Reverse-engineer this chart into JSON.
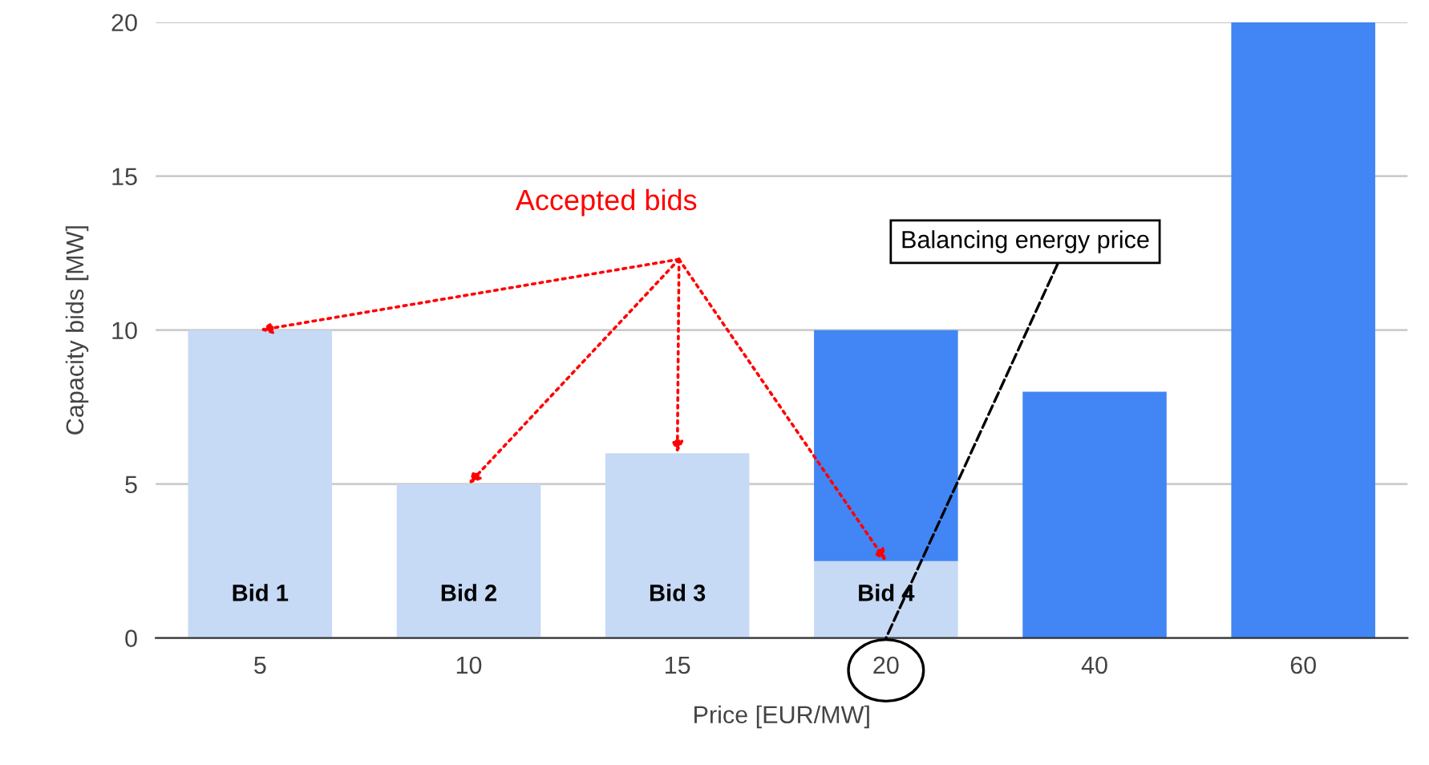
{
  "chart_data": {
    "type": "bar",
    "stacked": true,
    "xlabel": "Price [EUR/MW]",
    "ylabel": "Capacity bids [MW]",
    "categories": [
      "5",
      "10",
      "15",
      "20",
      "40",
      "60"
    ],
    "series": [
      {
        "color": "#c6d9f5",
        "values": [
          10,
          5,
          6,
          2.5,
          0,
          0
        ]
      },
      {
        "color": "#4285f4",
        "values": [
          0,
          0,
          0,
          7.5,
          8,
          20
        ]
      }
    ],
    "ylim": [
      0,
      20
    ],
    "yticks": [
      0,
      5,
      10,
      15,
      20
    ],
    "grid": "y",
    "legend": false,
    "annotations": [
      "Accepted bids",
      {
        "text": "Balancing energy price",
        "x": "20",
        "y": 0
      },
      "Bid 1",
      "Bid 2",
      "Bid 3",
      "Bid 4"
    ]
  }
}
